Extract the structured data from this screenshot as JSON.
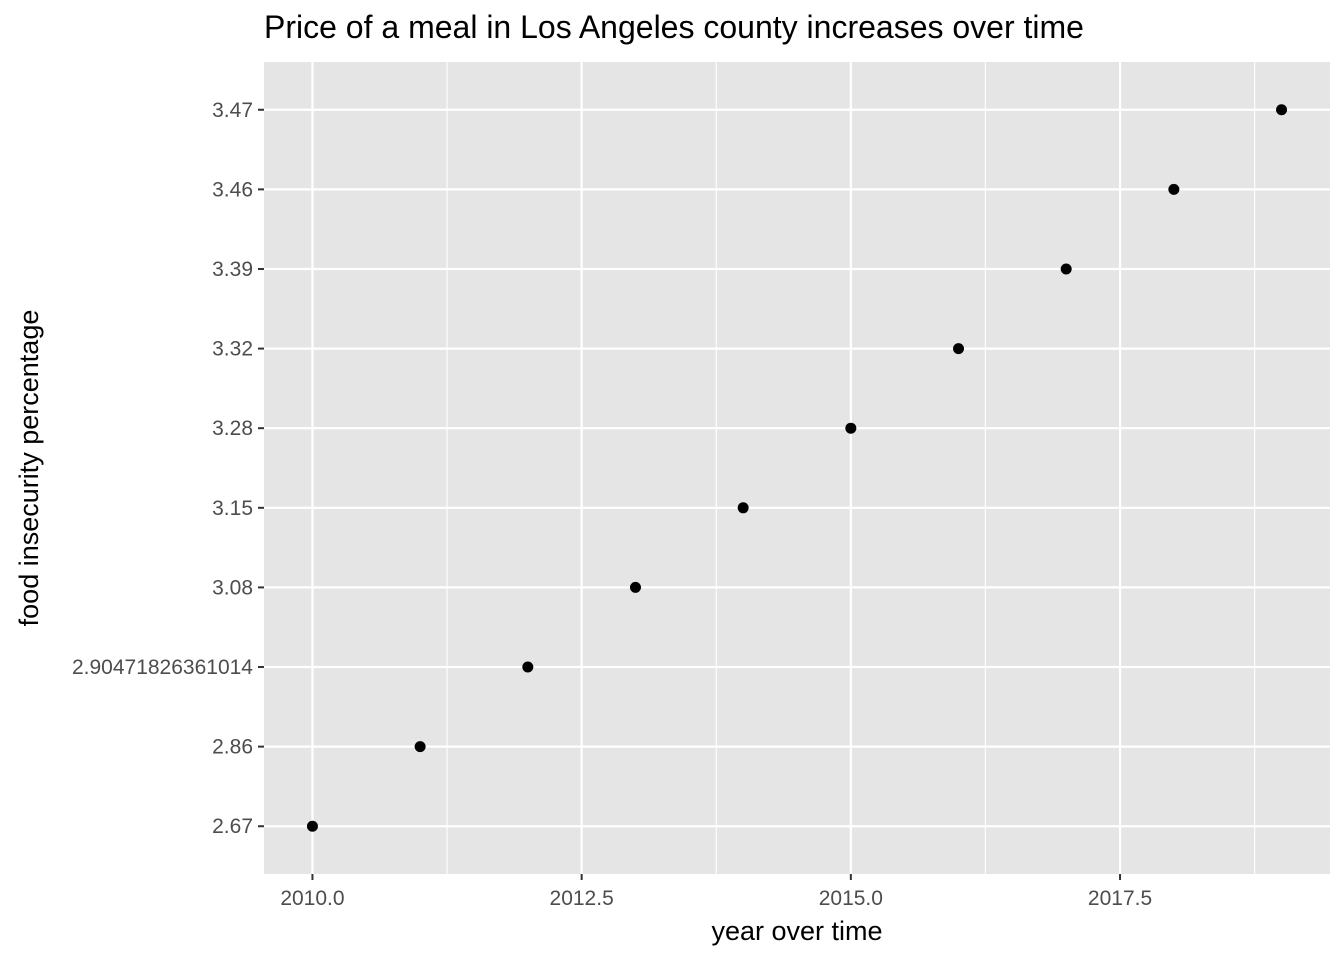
{
  "chart_data": {
    "type": "scatter",
    "title": "Price of a meal in Los Angeles county increases over time",
    "xlabel": "year over time",
    "ylabel": "food insecurity percentage",
    "x": [
      2010,
      2011,
      2012,
      2013,
      2014,
      2015,
      2016,
      2017,
      2018,
      2019
    ],
    "y_categories": [
      "2.67",
      "2.86",
      "2.90471826361014",
      "3.08",
      "3.15",
      "3.28",
      "3.32",
      "3.39",
      "3.46",
      "3.47"
    ],
    "y": [
      "2.67",
      "2.86",
      "2.90471826361014",
      "3.08",
      "3.15",
      "3.28",
      "3.32",
      "3.39",
      "3.46",
      "3.47"
    ],
    "xlim": [
      2009.55,
      2019.45
    ],
    "x_ticks": [
      {
        "value": 2010,
        "label": "2010.0"
      },
      {
        "value": 2012.5,
        "label": "2012.5"
      },
      {
        "value": 2015,
        "label": "2015.0"
      },
      {
        "value": 2017.5,
        "label": "2017.5"
      }
    ],
    "x_minor_ticks": [
      2011.25,
      2013.75,
      2016.25,
      2018.75
    ],
    "grid": true,
    "legend": "none",
    "colors": {
      "panel_background": "#e5e5e5",
      "grid_line": "#ffffff",
      "point": "#000000",
      "tick_text": "#4d4d4d",
      "tick_mark": "#333333"
    }
  }
}
